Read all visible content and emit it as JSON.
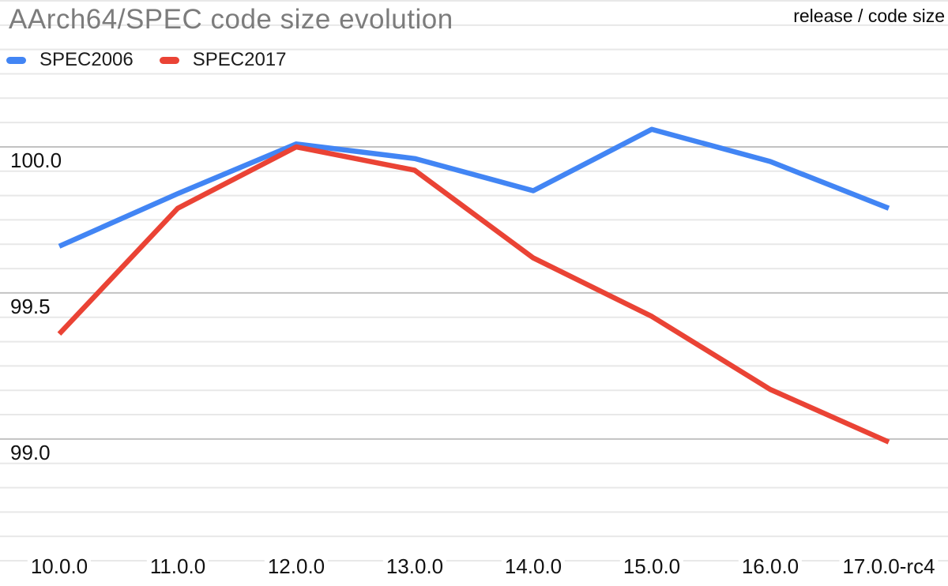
{
  "page": {
    "title": "AArch64/SPEC code size evolution",
    "corner_note": "release / code size"
  },
  "chart_data": {
    "type": "line",
    "title": "AArch64/SPEC code size evolution",
    "annotation_top_right": "release / code size",
    "xlabel": "",
    "ylabel": "",
    "grid": true,
    "legend_position": "top-left",
    "categories": [
      "10.0.0",
      "11.0.0",
      "12.0.0",
      "13.0.0",
      "14.0.0",
      "15.0.0",
      "16.0.0",
      "17.0.0-rc4"
    ],
    "series": [
      {
        "name": "SPEC2006",
        "color": "#4285F4",
        "values": [
          99.66,
          99.84,
          100.01,
          99.96,
          99.85,
          100.06,
          99.95,
          99.79
        ]
      },
      {
        "name": "SPEC2017",
        "color": "#EA4335",
        "values": [
          99.36,
          99.79,
          100.0,
          99.92,
          99.62,
          99.42,
          99.17,
          98.99
        ]
      }
    ],
    "yticks": [
      {
        "label": "100.0",
        "value": 100.0
      },
      {
        "label": "99.5",
        "value": 99.5
      },
      {
        "label": "99.0",
        "value": 99.0
      }
    ],
    "ylim": [
      98.55,
      100.5
    ]
  },
  "colors": {
    "background": "#ffffff",
    "title_text": "#7c7c7c",
    "axis_text": "#111111",
    "minor_gridline": "#e8e8e8",
    "major_gridline": "#c2c2c2",
    "series_blue": "#4285F4",
    "series_red": "#EA4335"
  }
}
